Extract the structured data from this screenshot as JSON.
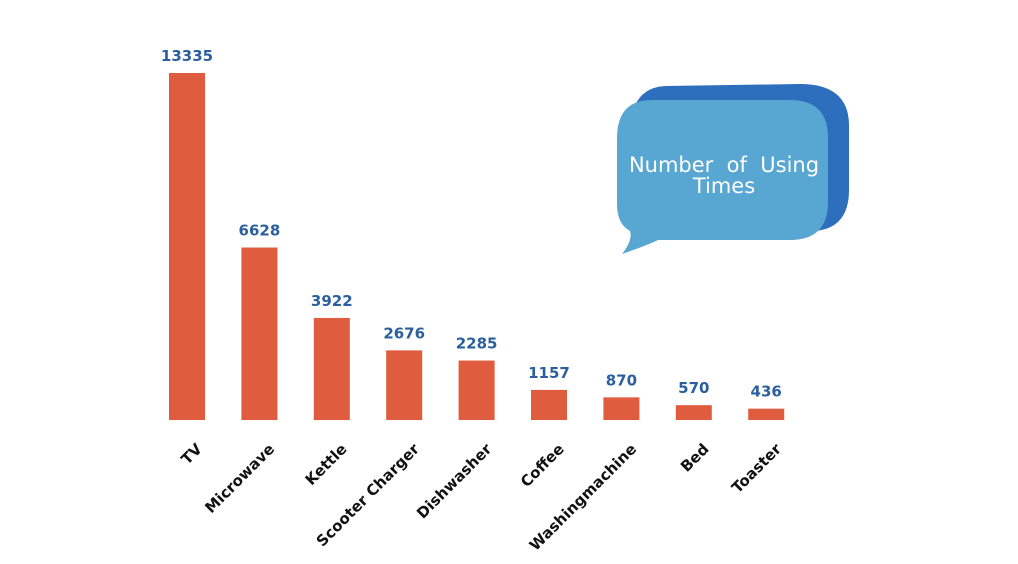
{
  "chart_data": {
    "type": "bar",
    "title": "",
    "xlabel": "",
    "ylabel": "",
    "categories": [
      "TV",
      "Microwave",
      "Kettle",
      "Scooter Charger",
      "Dishwasher",
      "Coffee",
      "Washingmachine",
      "Bed",
      "Toaster"
    ],
    "values": [
      13335,
      6628,
      3922,
      2676,
      2285,
      1157,
      870,
      570,
      436
    ],
    "ylim": [
      0,
      13335
    ],
    "grid": false,
    "data_labels": true,
    "colors": {
      "bar": "#e05c3e",
      "value_label": "#2b5f9e"
    }
  },
  "callout": {
    "line1": "Number  of  Using",
    "line2": "Times",
    "colors": {
      "front": "#58a6d2",
      "back": "#2e6fbd"
    }
  }
}
